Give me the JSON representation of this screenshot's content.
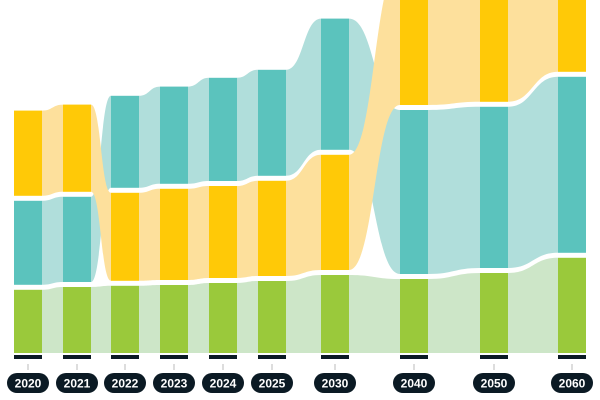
{
  "chart_data": {
    "type": "stacked-bar-flow",
    "title": "",
    "xlabel": "",
    "ylabel": "",
    "categories": [
      "2020",
      "2021",
      "2022",
      "2023",
      "2024",
      "2025",
      "2030",
      "2040",
      "2050",
      "2060"
    ],
    "series": [
      {
        "key": "green",
        "values": [
          15.8,
          16.5,
          16.8,
          17,
          17.5,
          18,
          19.5,
          18.5,
          20,
          23.8
        ]
      },
      {
        "key": "teal",
        "values": [
          21,
          21.3,
          23,
          24.3,
          25.8,
          26.5,
          32.8,
          41,
          40.3,
          44
        ]
      },
      {
        "key": "yellow",
        "values": [
          21.3,
          21.8,
          22,
          22.8,
          23,
          23.8,
          28.8,
          35,
          32.5,
          27.5
        ]
      }
    ],
    "stack_order_bottom_to_top": [
      [
        "green",
        "teal",
        "yellow"
      ],
      [
        "green",
        "teal",
        "yellow"
      ],
      [
        "green",
        "yellow",
        "teal"
      ],
      [
        "green",
        "yellow",
        "teal"
      ],
      [
        "green",
        "yellow",
        "teal"
      ],
      [
        "green",
        "yellow",
        "teal"
      ],
      [
        "green",
        "yellow",
        "teal"
      ],
      [
        "green",
        "teal",
        "yellow"
      ],
      [
        "green",
        "teal",
        "yellow"
      ],
      [
        "green",
        "teal",
        "yellow"
      ]
    ],
    "colors": {
      "green": {
        "bar": "#9AC93B",
        "flow": "#CDE6C8"
      },
      "teal": {
        "bar": "#5BC3BD",
        "flow": "#B0DEDB"
      },
      "yellow": {
        "bar": "#FFC907",
        "flow": "#FDE09C"
      }
    },
    "label_color": "#0B1A24",
    "grid": false,
    "legend": "none"
  }
}
